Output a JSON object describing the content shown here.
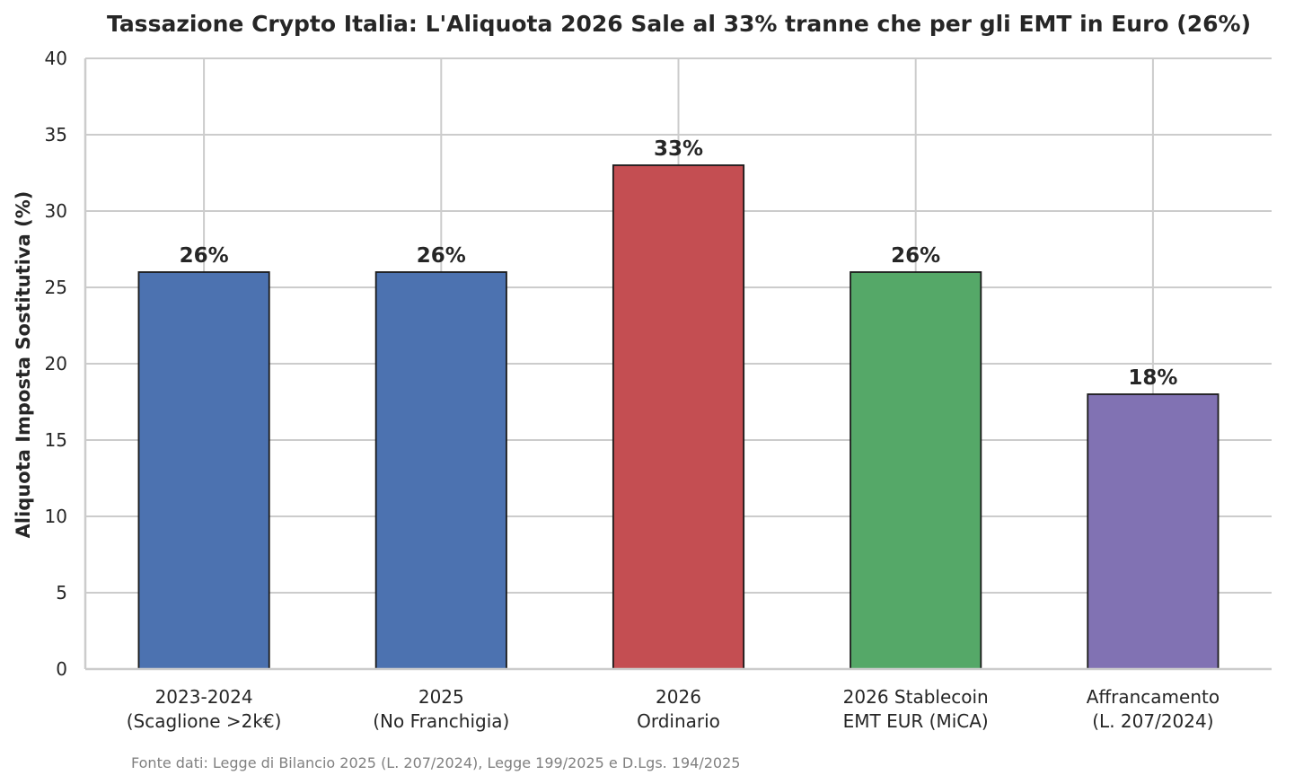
{
  "chart_data": {
    "type": "bar",
    "title": "Tassazione Crypto Italia: L'Aliquota 2026 Sale al 33% tranne che per gli EMT in Euro (26%)",
    "xlabel": "",
    "ylabel": "Aliquota Imposta Sostitutiva (%)",
    "ylim": [
      0,
      40
    ],
    "yticks": [
      0,
      5,
      10,
      15,
      20,
      25,
      30,
      35,
      40
    ],
    "grid": true,
    "categories": [
      [
        "2023-2024",
        "(Scaglione >2k€)"
      ],
      [
        "2025",
        "(No Franchigia)"
      ],
      [
        "2026",
        "Ordinario"
      ],
      [
        "2026 Stablecoin",
        "EMT EUR (MiCA)"
      ],
      [
        "Affrancamento",
        "(L. 207/2024)"
      ]
    ],
    "values": [
      26,
      26,
      33,
      26,
      18
    ],
    "data_labels": [
      "26%",
      "26%",
      "33%",
      "26%",
      "18%"
    ],
    "colors": [
      "#4c72b0",
      "#4c72b0",
      "#c44e52",
      "#55a868",
      "#8172b3"
    ],
    "source_note": "Fonte dati: Legge di Bilancio 2025 (L. 207/2024), Legge 199/2025 e D.Lgs. 194/2025"
  }
}
